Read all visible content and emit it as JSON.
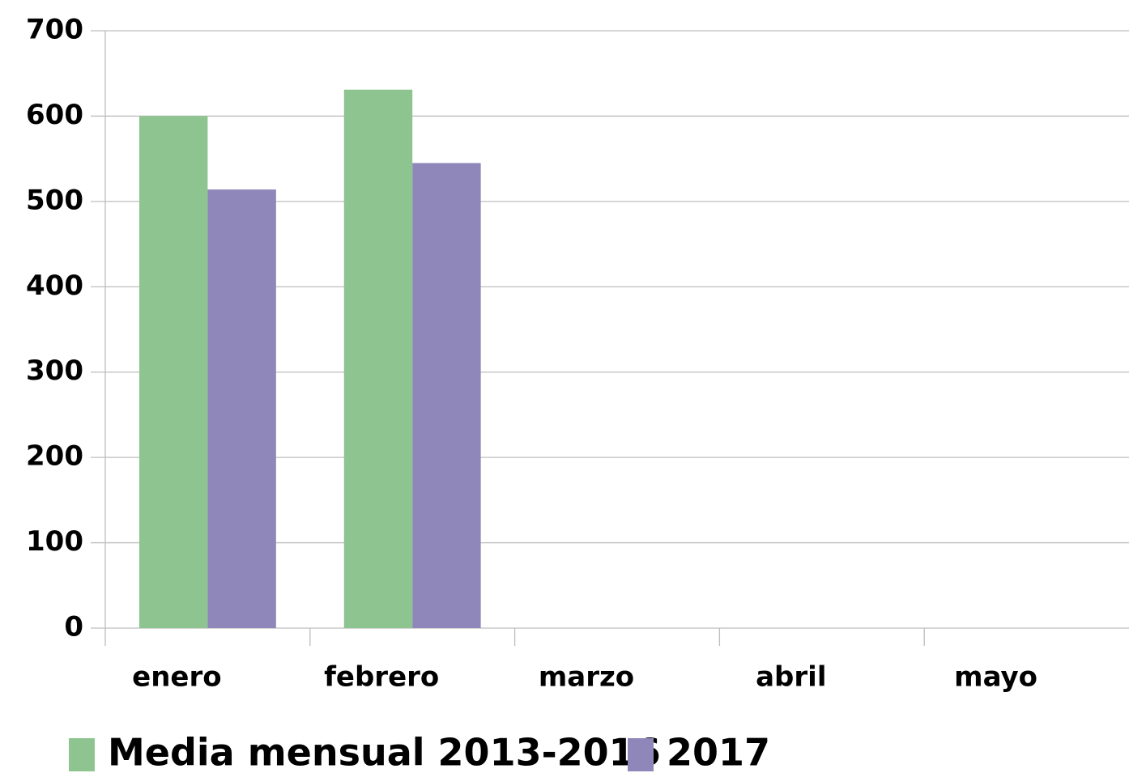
{
  "chart_data": {
    "type": "bar",
    "categories": [
      "enero",
      "febrero",
      "marzo",
      "abril",
      "mayo"
    ],
    "series": [
      {
        "name": "Media mensual 2013-2016",
        "color": "#8dc48f",
        "values": [
          600,
          631,
          null,
          null,
          null
        ]
      },
      {
        "name": "2017",
        "color": "#8f87ba",
        "values": [
          514,
          545,
          null,
          null,
          null
        ]
      }
    ],
    "ylim": [
      0,
      700
    ],
    "yticks": [
      0,
      100,
      200,
      300,
      400,
      500,
      600,
      700
    ],
    "grid": true,
    "legend": "bottom"
  }
}
